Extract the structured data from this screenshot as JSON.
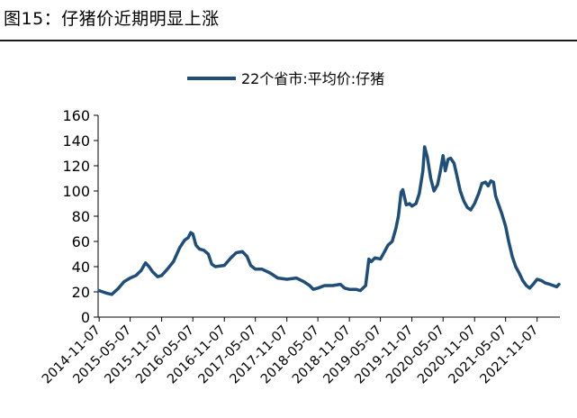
{
  "figure": {
    "title": "图15：仔猪价近期明显上涨"
  },
  "chart_data": {
    "type": "line",
    "title": "",
    "xlabel": "",
    "ylabel": "",
    "ylim": [
      0,
      160
    ],
    "y_ticks": [
      0,
      20,
      40,
      60,
      80,
      100,
      120,
      140,
      160
    ],
    "x_tick_labels": [
      "2014-11-07",
      "2015-05-07",
      "2015-11-07",
      "2016-05-07",
      "2016-11-07",
      "2017-05-07",
      "2017-11-07",
      "2018-05-07",
      "2018-11-07",
      "2019-05-07",
      "2019-11-07",
      "2020-05-07",
      "2020-11-07",
      "2021-05-07",
      "2021-11-07"
    ],
    "grid": false,
    "legend_position": "top",
    "line_color": "#1f4e79",
    "series": [
      {
        "name": "22个省市:平均价:仔猪",
        "points": [
          [
            "2014-11-07",
            21
          ],
          [
            "2014-12-20",
            19
          ],
          [
            "2015-01-20",
            18
          ],
          [
            "2015-03-01",
            23
          ],
          [
            "2015-04-01",
            28
          ],
          [
            "2015-05-07",
            31
          ],
          [
            "2015-06-10",
            33
          ],
          [
            "2015-07-10",
            37
          ],
          [
            "2015-08-05",
            43
          ],
          [
            "2015-08-25",
            40
          ],
          [
            "2015-09-15",
            36
          ],
          [
            "2015-10-15",
            32
          ],
          [
            "2015-11-07",
            33
          ],
          [
            "2015-12-10",
            38
          ],
          [
            "2016-01-15",
            44
          ],
          [
            "2016-02-20",
            55
          ],
          [
            "2016-03-20",
            61
          ],
          [
            "2016-04-10",
            63
          ],
          [
            "2016-04-25",
            67
          ],
          [
            "2016-05-07",
            66
          ],
          [
            "2016-05-25",
            57
          ],
          [
            "2016-06-15",
            54
          ],
          [
            "2016-07-10",
            53
          ],
          [
            "2016-08-05",
            50
          ],
          [
            "2016-08-25",
            42
          ],
          [
            "2016-09-15",
            40
          ],
          [
            "2016-11-07",
            41
          ],
          [
            "2016-12-15",
            47
          ],
          [
            "2017-01-15",
            51
          ],
          [
            "2017-02-20",
            52
          ],
          [
            "2017-03-20",
            48
          ],
          [
            "2017-04-10",
            41
          ],
          [
            "2017-05-07",
            38
          ],
          [
            "2017-06-15",
            38
          ],
          [
            "2017-08-01",
            35
          ],
          [
            "2017-09-15",
            31
          ],
          [
            "2017-11-07",
            30
          ],
          [
            "2018-01-01",
            31
          ],
          [
            "2018-02-15",
            28
          ],
          [
            "2018-03-20",
            25
          ],
          [
            "2018-04-10",
            22
          ],
          [
            "2018-05-07",
            23
          ],
          [
            "2018-06-15",
            25
          ],
          [
            "2018-08-01",
            25
          ],
          [
            "2018-09-15",
            26
          ],
          [
            "2018-10-10",
            23
          ],
          [
            "2018-11-07",
            22
          ],
          [
            "2018-12-15",
            22
          ],
          [
            "2019-01-10",
            21
          ],
          [
            "2019-02-10",
            25
          ],
          [
            "2019-03-01",
            46
          ],
          [
            "2019-03-15",
            44
          ],
          [
            "2019-04-05",
            47
          ],
          [
            "2019-05-07",
            46
          ],
          [
            "2019-06-01",
            52
          ],
          [
            "2019-06-20",
            57
          ],
          [
            "2019-07-15",
            60
          ],
          [
            "2019-08-05",
            70
          ],
          [
            "2019-08-20",
            80
          ],
          [
            "2019-09-05",
            99
          ],
          [
            "2019-09-15",
            101
          ],
          [
            "2019-10-05",
            89
          ],
          [
            "2019-10-25",
            90
          ],
          [
            "2019-11-07",
            88
          ],
          [
            "2019-12-01",
            90
          ],
          [
            "2019-12-20",
            98
          ],
          [
            "2020-01-10",
            116
          ],
          [
            "2020-01-20",
            135
          ],
          [
            "2020-02-05",
            127
          ],
          [
            "2020-02-25",
            110
          ],
          [
            "2020-03-15",
            100
          ],
          [
            "2020-04-05",
            105
          ],
          [
            "2020-04-20",
            115
          ],
          [
            "2020-05-07",
            128
          ],
          [
            "2020-05-20",
            116
          ],
          [
            "2020-06-05",
            125
          ],
          [
            "2020-06-20",
            126
          ],
          [
            "2020-07-10",
            122
          ],
          [
            "2020-07-25",
            113
          ],
          [
            "2020-08-15",
            100
          ],
          [
            "2020-09-05",
            92
          ],
          [
            "2020-09-25",
            87
          ],
          [
            "2020-10-15",
            85
          ],
          [
            "2020-11-07",
            90
          ],
          [
            "2020-12-01",
            98
          ],
          [
            "2020-12-20",
            106
          ],
          [
            "2021-01-10",
            107
          ],
          [
            "2021-01-25",
            104
          ],
          [
            "2021-02-10",
            108
          ],
          [
            "2021-02-25",
            107
          ],
          [
            "2021-03-10",
            96
          ],
          [
            "2021-03-25",
            90
          ],
          [
            "2021-04-15",
            82
          ],
          [
            "2021-05-07",
            72
          ],
          [
            "2021-05-25",
            60
          ],
          [
            "2021-06-15",
            48
          ],
          [
            "2021-07-05",
            40
          ],
          [
            "2021-07-25",
            35
          ],
          [
            "2021-08-15",
            29
          ],
          [
            "2021-09-05",
            25
          ],
          [
            "2021-09-25",
            23
          ],
          [
            "2021-10-15",
            26
          ],
          [
            "2021-11-07",
            30
          ],
          [
            "2021-12-01",
            29
          ],
          [
            "2021-12-25",
            27
          ],
          [
            "2022-01-20",
            26
          ],
          [
            "2022-02-10",
            25
          ],
          [
            "2022-03-01",
            24
          ],
          [
            "2022-03-15",
            26
          ]
        ]
      }
    ]
  }
}
